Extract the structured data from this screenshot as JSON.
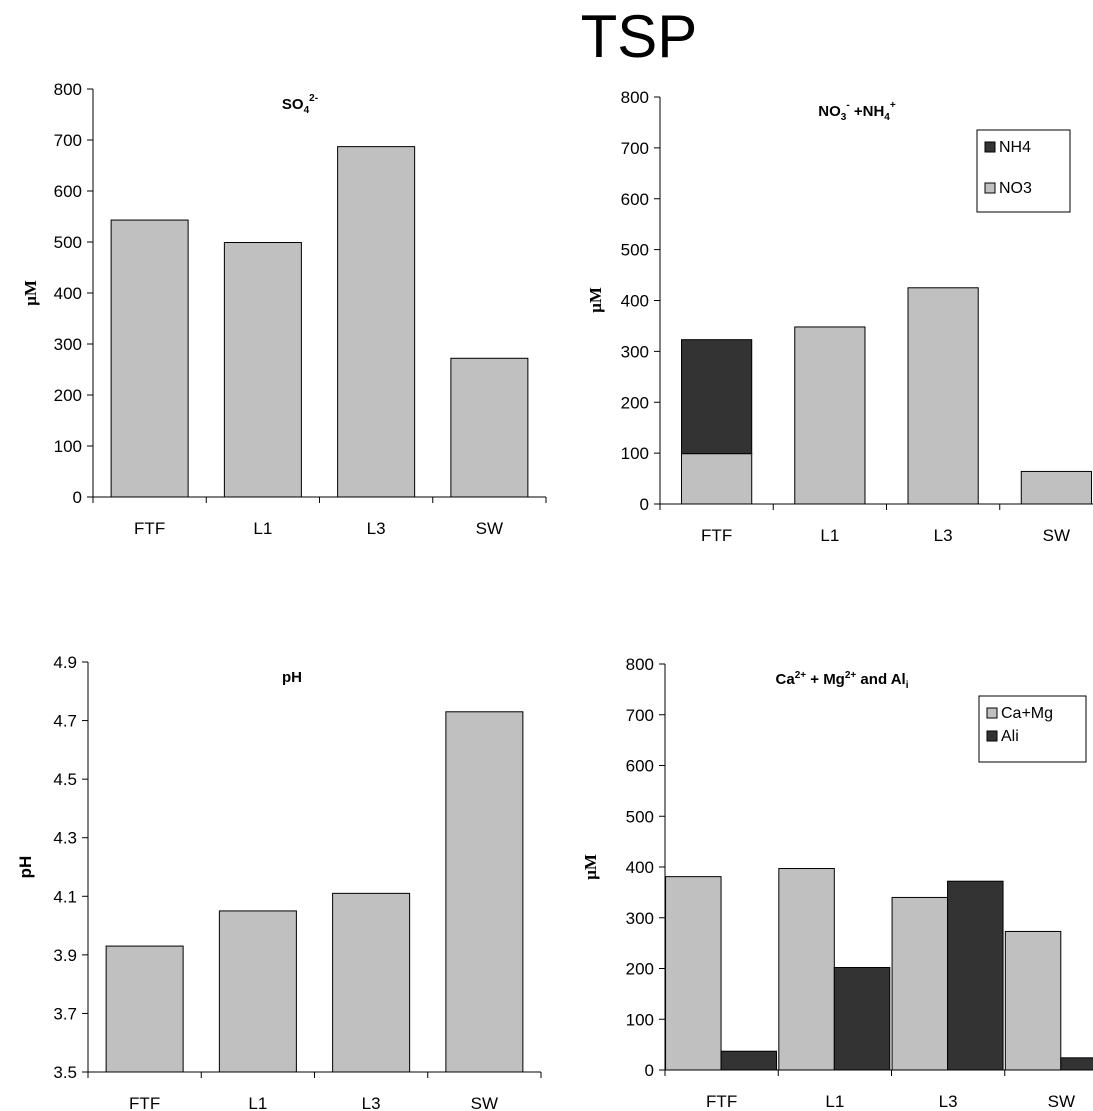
{
  "title": "TSP",
  "chart_data": [
    {
      "type": "bar",
      "title": "SO4 2-",
      "title_parts": {
        "base": "SO",
        "sub": "4",
        "sup": "2-"
      },
      "ylabel": "µM",
      "ylim": [
        0,
        800
      ],
      "yticks": [
        "0",
        "100",
        "200",
        "300",
        "400",
        "500",
        "600",
        "700",
        "800"
      ],
      "categories": [
        "FTF",
        "L1",
        "L3",
        "SW"
      ],
      "series": [
        {
          "values": [
            543,
            499,
            687,
            272
          ],
          "color": "#c0c0c0"
        }
      ]
    },
    {
      "type": "bar",
      "stacked": true,
      "title": "NO3- +NH4+",
      "ylabel": "µM",
      "ylim": [
        0,
        800
      ],
      "yticks": [
        "0",
        "100",
        "200",
        "300",
        "400",
        "500",
        "600",
        "700",
        "800"
      ],
      "categories": [
        "FTF",
        "L1",
        "L3",
        "SW"
      ],
      "legend_position": "top-right",
      "series": [
        {
          "name": "NO3",
          "values": [
            99,
            348,
            425,
            64
          ],
          "color": "#c0c0c0"
        },
        {
          "name": "NH4",
          "values": [
            224,
            0,
            0,
            0
          ],
          "color": "#333333"
        }
      ],
      "legend": [
        "NH4",
        "NO3"
      ]
    },
    {
      "type": "bar",
      "title": "pH",
      "ylabel": "pH",
      "ylim": [
        3.5,
        4.9
      ],
      "yticks": [
        "3.5",
        "3.7",
        "3.9",
        "4.1",
        "4.3",
        "4.5",
        "4.7",
        "4.9"
      ],
      "categories": [
        "FTF",
        "L1",
        "L3",
        "SW"
      ],
      "series": [
        {
          "values": [
            3.93,
            4.05,
            4.11,
            4.73
          ],
          "color": "#c0c0c0"
        }
      ]
    },
    {
      "type": "bar",
      "title": "Ca2+ + Mg2+ and Ali",
      "ylabel": "µM",
      "ylim": [
        0,
        800
      ],
      "yticks": [
        "0",
        "100",
        "200",
        "300",
        "400",
        "500",
        "600",
        "700",
        "800"
      ],
      "categories": [
        "FTF",
        "L1",
        "L3",
        "SW"
      ],
      "legend_position": "top-right",
      "series": [
        {
          "name": "Ca+Mg",
          "values": [
            381,
            397,
            340,
            273
          ],
          "color": "#c0c0c0"
        },
        {
          "name": "Ali",
          "values": [
            37,
            202,
            372,
            24
          ],
          "color": "#333333"
        }
      ],
      "legend": [
        "Ca+Mg",
        "Ali"
      ]
    }
  ]
}
